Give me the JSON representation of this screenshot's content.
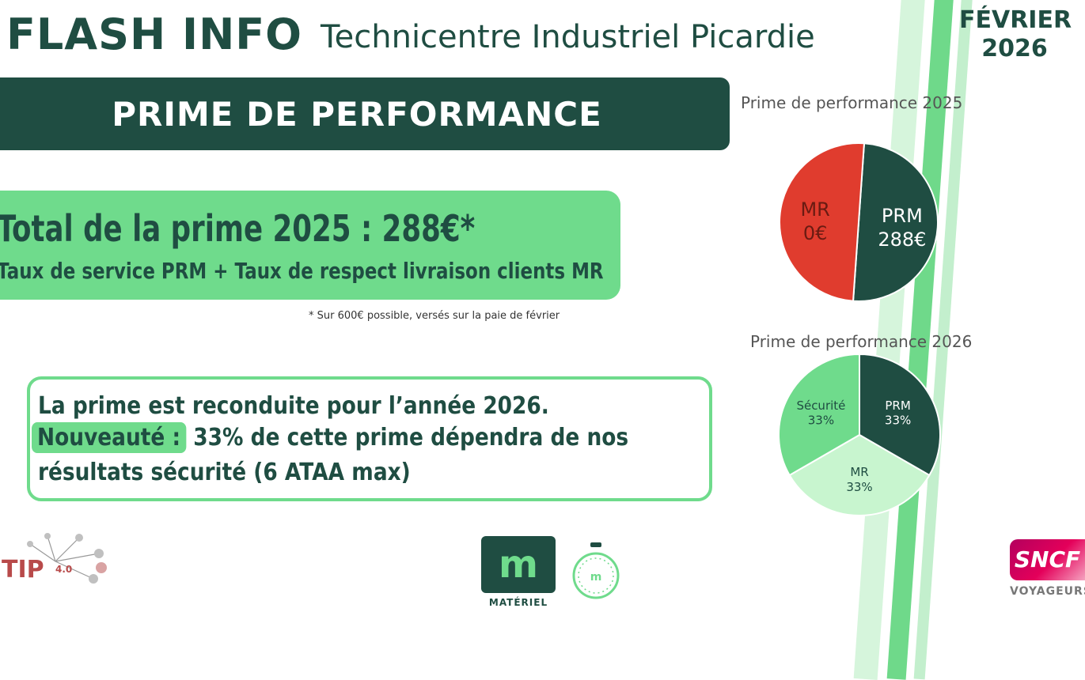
{
  "header": {
    "flash": "FLASH INFO",
    "subtitle": "Technicentre Industriel Picardie",
    "month": "FÉVRIER",
    "year": "2026"
  },
  "banner": {
    "title": "PRIME DE PERFORMANCE"
  },
  "total": {
    "title": "Total de la prime 2025 : 288€*",
    "subtitle": "Taux de service PRM + Taux de respect livraison clients MR",
    "footnote": "* Sur 600€ possible, versés sur la paie de février"
  },
  "news": {
    "line1": "La prime est reconduite pour l’année 2026.",
    "highlight": "Nouveauté :",
    "line2_rest": " 33% de cette prime dépendra de nos",
    "line3": "résultats sécurité (6 ATAA max)"
  },
  "pie_2025": {
    "title": "Prime de performance 2025",
    "slices": [
      {
        "name": "PRM",
        "label": "288€",
        "value": 50,
        "color": "#1f4d42",
        "text_color": "#ffffff"
      },
      {
        "name": "MR",
        "label": "0€",
        "value": 50,
        "color": "#e03c2e",
        "text_color": "#6a1b12"
      }
    ]
  },
  "pie_2026": {
    "title": "Prime de performance 2026",
    "slices": [
      {
        "name": "PRM",
        "label": "33%",
        "value": 33.3,
        "color": "#1f4d42",
        "text_color": "#ffffff"
      },
      {
        "name": "MR",
        "label": "33%",
        "value": 33.3,
        "color": "#c8f5cf",
        "text_color": "#1f4d42"
      },
      {
        "name": "Sécurité",
        "label": "33%",
        "value": 33.3,
        "color": "#6fdb8c",
        "text_color": "#1f4d42"
      }
    ]
  },
  "logos": {
    "tip": "TIP",
    "tip_version": "4.0",
    "materiel_mark": "m",
    "materiel": "MATÉRIEL",
    "sncf": "SNCF",
    "voyageurs": "VOYAGEURS"
  }
}
